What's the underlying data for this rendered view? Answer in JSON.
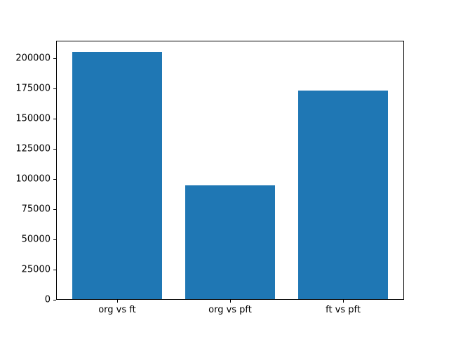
{
  "chart_data": {
    "type": "bar",
    "title": "",
    "xlabel": "",
    "ylabel": "",
    "categories": [
      "org vs ft",
      "org vs pft",
      "ft vs pft"
    ],
    "values": [
      205000,
      95000,
      173000
    ],
    "ylim": [
      0,
      214500
    ],
    "yticks": [
      0,
      25000,
      50000,
      75000,
      100000,
      125000,
      150000,
      175000,
      200000
    ],
    "bar_color": "#1f77b4",
    "axis_color": "#000000",
    "background_color": "#ffffff",
    "grid": false,
    "legend_position": "none",
    "bar_width_fraction": 0.8
  }
}
